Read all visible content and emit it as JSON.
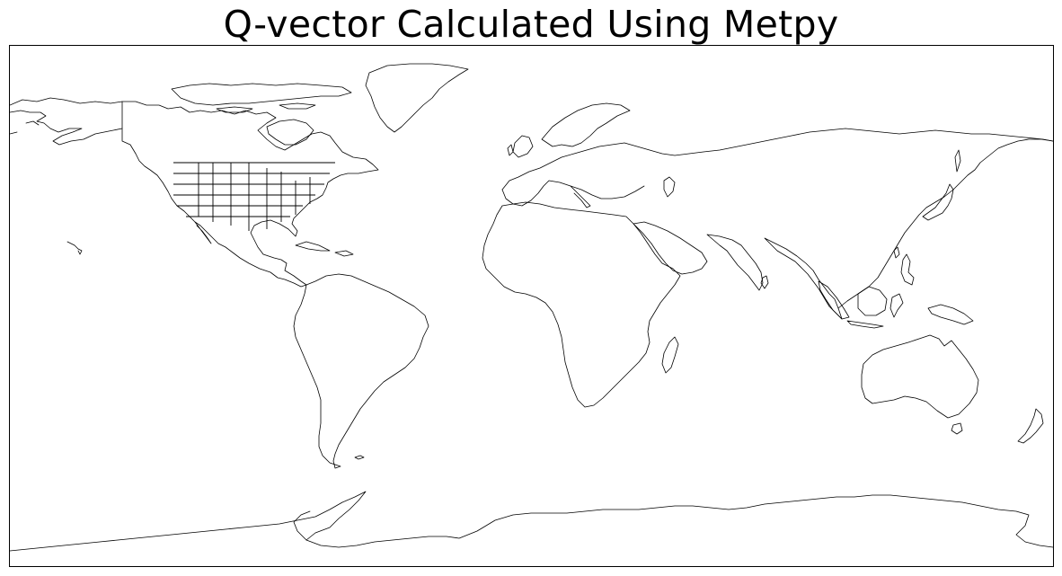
{
  "map": {
    "title": "Q-vector Calculated Using Metpy",
    "projection": "PlateCarree",
    "extent_lon": [
      -180,
      180
    ],
    "extent_lat": [
      -90,
      90
    ],
    "features": [
      "coastlines",
      "us-states"
    ],
    "line_color": "#000000",
    "background": "#ffffff"
  }
}
